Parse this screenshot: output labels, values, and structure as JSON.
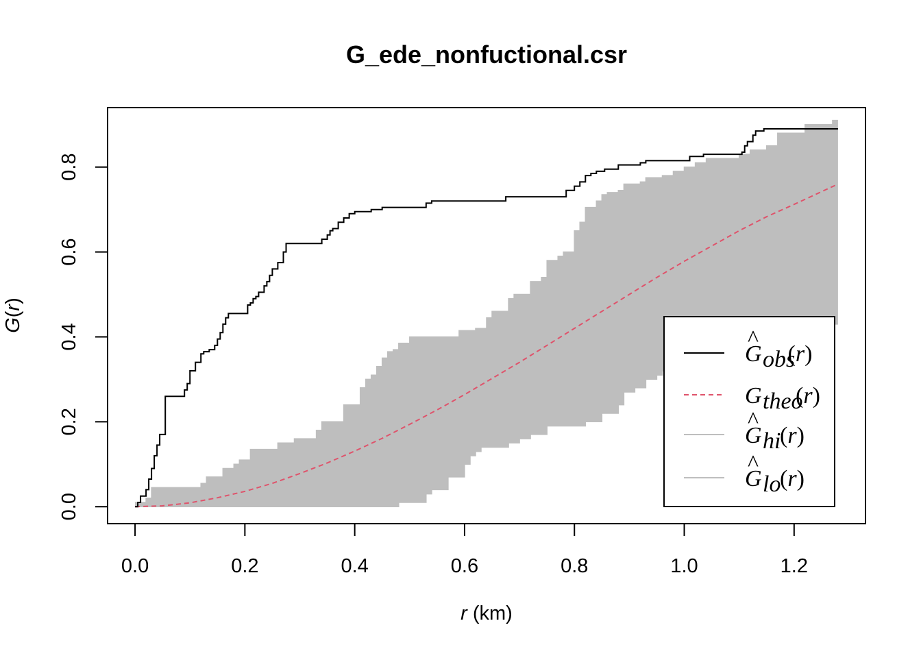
{
  "chart_data": {
    "type": "line",
    "title": "G_ede_nonfuctional.csr",
    "xlabel_var": "r",
    "xlabel_unit": " (km)",
    "ylabel_func": "G",
    "ylabel_var": "r",
    "xlim": [
      -0.05,
      1.33
    ],
    "ylim": [
      -0.04,
      0.94
    ],
    "xticks": [
      "0.0",
      "0.2",
      "0.4",
      "0.6",
      "0.8",
      "1.0",
      "1.2"
    ],
    "yticks": [
      "0.0",
      "0.2",
      "0.4",
      "0.6",
      "0.8"
    ],
    "grid": false,
    "legend_position": "bottom-right",
    "colors": {
      "obs": "#000000",
      "theo": "#DF536B",
      "band": "#BEBEBE"
    },
    "legend": [
      {
        "base": "G",
        "hat": true,
        "sub": "obs",
        "arg": "(r)"
      },
      {
        "base": "G",
        "hat": false,
        "sub": "theo",
        "arg": "(r)"
      },
      {
        "base": "G",
        "hat": true,
        "sub": "hi",
        "arg": "(r)"
      },
      {
        "base": "G",
        "hat": true,
        "sub": "lo",
        "arg": "(r)"
      }
    ],
    "series": [
      {
        "name": "obs",
        "step": true,
        "x": [
          0,
          0.005,
          0.01,
          0.02,
          0.025,
          0.03,
          0.035,
          0.04,
          0.045,
          0.055,
          0.06,
          0.09,
          0.095,
          0.1,
          0.11,
          0.12,
          0.125,
          0.135,
          0.145,
          0.15,
          0.155,
          0.16,
          0.165,
          0.17,
          0.18,
          0.205,
          0.21,
          0.215,
          0.22,
          0.225,
          0.235,
          0.24,
          0.245,
          0.25,
          0.26,
          0.27,
          0.275,
          0.33,
          0.34,
          0.35,
          0.355,
          0.36,
          0.37,
          0.38,
          0.39,
          0.4,
          0.43,
          0.45,
          0.53,
          0.54,
          0.67,
          0.675,
          0.775,
          0.785,
          0.8,
          0.81,
          0.82,
          0.83,
          0.84,
          0.855,
          0.88,
          0.92,
          0.93,
          1.01,
          1.035,
          1.105,
          1.11,
          1.115,
          1.125,
          1.13,
          1.145,
          1.28
        ],
        "y": [
          0,
          0.01,
          0.025,
          0.04,
          0.065,
          0.09,
          0.12,
          0.145,
          0.17,
          0.26,
          0.26,
          0.275,
          0.29,
          0.32,
          0.34,
          0.36,
          0.365,
          0.37,
          0.38,
          0.395,
          0.41,
          0.43,
          0.445,
          0.455,
          0.455,
          0.475,
          0.48,
          0.49,
          0.495,
          0.505,
          0.52,
          0.53,
          0.545,
          0.56,
          0.575,
          0.6,
          0.62,
          0.62,
          0.63,
          0.64,
          0.65,
          0.655,
          0.67,
          0.68,
          0.69,
          0.695,
          0.7,
          0.705,
          0.715,
          0.72,
          0.72,
          0.73,
          0.73,
          0.745,
          0.755,
          0.765,
          0.78,
          0.785,
          0.79,
          0.795,
          0.805,
          0.81,
          0.815,
          0.825,
          0.83,
          0.835,
          0.85,
          0.86,
          0.875,
          0.885,
          0.89,
          0.89
        ]
      },
      {
        "name": "theo",
        "x": [
          0,
          0.05,
          0.1,
          0.15,
          0.2,
          0.25,
          0.3,
          0.35,
          0.4,
          0.45,
          0.5,
          0.55,
          0.6,
          0.65,
          0.7,
          0.75,
          0.8,
          0.85,
          0.9,
          0.95,
          1.0,
          1.05,
          1.1,
          1.15,
          1.2,
          1.25,
          1.28
        ],
        "y": [
          0,
          0.002,
          0.009,
          0.021,
          0.036,
          0.055,
          0.078,
          0.103,
          0.131,
          0.161,
          0.194,
          0.228,
          0.264,
          0.302,
          0.34,
          0.38,
          0.42,
          0.46,
          0.5,
          0.54,
          0.578,
          0.614,
          0.65,
          0.683,
          0.712,
          0.742,
          0.76
        ]
      },
      {
        "name": "hi",
        "step": true,
        "x": [
          0,
          0.02,
          0.03,
          0.1,
          0.12,
          0.13,
          0.16,
          0.17,
          0.18,
          0.19,
          0.21,
          0.24,
          0.26,
          0.29,
          0.32,
          0.33,
          0.34,
          0.37,
          0.38,
          0.41,
          0.42,
          0.43,
          0.44,
          0.45,
          0.46,
          0.47,
          0.48,
          0.5,
          0.58,
          0.59,
          0.61,
          0.62,
          0.64,
          0.65,
          0.68,
          0.69,
          0.7,
          0.71,
          0.72,
          0.74,
          0.75,
          0.77,
          0.78,
          0.8,
          0.81,
          0.82,
          0.84,
          0.85,
          0.86,
          0.88,
          0.89,
          0.92,
          0.93,
          0.94,
          0.96,
          0.98,
          1.0,
          1.02,
          1.04,
          1.1,
          1.12,
          1.15,
          1.17,
          1.2,
          1.22,
          1.26,
          1.27,
          1.28
        ],
        "y": [
          0.01,
          0.02,
          0.045,
          0.045,
          0.055,
          0.07,
          0.09,
          0.09,
          0.1,
          0.11,
          0.135,
          0.135,
          0.15,
          0.16,
          0.16,
          0.18,
          0.2,
          0.2,
          0.24,
          0.28,
          0.3,
          0.31,
          0.33,
          0.35,
          0.365,
          0.37,
          0.385,
          0.4,
          0.4,
          0.415,
          0.415,
          0.42,
          0.445,
          0.46,
          0.49,
          0.5,
          0.5,
          0.5,
          0.53,
          0.54,
          0.58,
          0.59,
          0.6,
          0.65,
          0.67,
          0.705,
          0.72,
          0.735,
          0.74,
          0.745,
          0.76,
          0.765,
          0.775,
          0.775,
          0.78,
          0.79,
          0.8,
          0.81,
          0.82,
          0.83,
          0.84,
          0.85,
          0.88,
          0.88,
          0.9,
          0.9,
          0.91,
          0.91
        ]
      },
      {
        "name": "lo",
        "step": true,
        "x": [
          0,
          0.47,
          0.48,
          0.53,
          0.54,
          0.57,
          0.6,
          0.61,
          0.62,
          0.63,
          0.67,
          0.68,
          0.7,
          0.72,
          0.75,
          0.8,
          0.82,
          0.85,
          0.88,
          0.89,
          0.91,
          0.93,
          0.95,
          0.96,
          0.99,
          1.02,
          1.06,
          1.08,
          1.2,
          1.22,
          1.25,
          1.28
        ],
        "y": [
          0,
          0,
          0.01,
          0.03,
          0.04,
          0.07,
          0.1,
          0.12,
          0.13,
          0.14,
          0.14,
          0.15,
          0.16,
          0.17,
          0.19,
          0.19,
          0.2,
          0.22,
          0.24,
          0.27,
          0.28,
          0.3,
          0.31,
          0.32,
          0.33,
          0.35,
          0.37,
          0.38,
          0.4,
          0.41,
          0.43,
          0.43
        ]
      }
    ]
  }
}
